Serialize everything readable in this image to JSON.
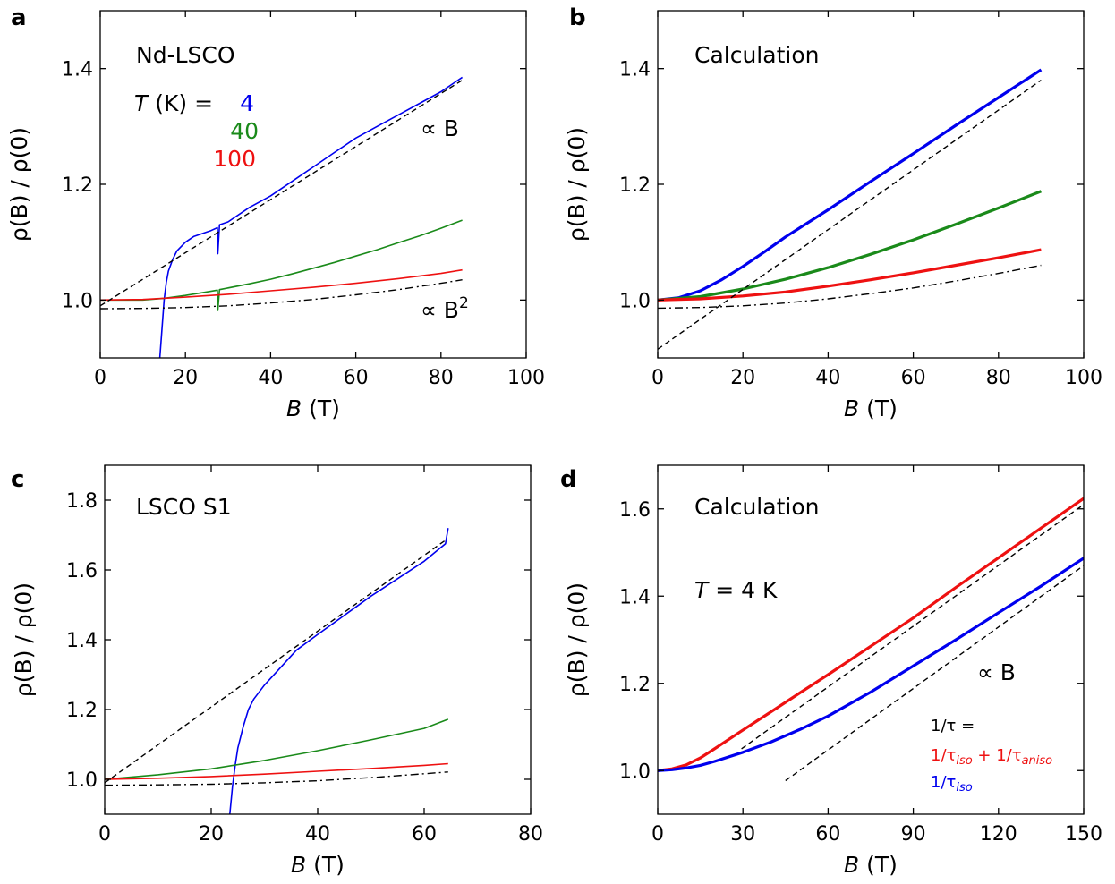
{
  "chart_data": [
    {
      "panel": "a",
      "type": "line",
      "annotation": "Nd-LSCO",
      "temperature_legend": {
        "prefix_symbol": "T",
        "prefix_rest": " (K)  =",
        "entries": [
          {
            "label": "4",
            "color": "#0000ee"
          },
          {
            "label": "40",
            "color": "#1a8a1a"
          },
          {
            "label": "100",
            "color": "#ee1111"
          }
        ]
      },
      "guide_labels": [
        {
          "text": "∝ B",
          "sup": ""
        },
        {
          "text": "∝ B",
          "sup": "2"
        }
      ],
      "xlabel": {
        "sym": "B",
        "rest": " (T)"
      },
      "ylabel": "ρ(B) / ρ(0)",
      "xlim": [
        0,
        100
      ],
      "ylim": [
        0.9,
        1.5
      ],
      "xticks": [
        0,
        20,
        40,
        60,
        80,
        100
      ],
      "yticks": [
        1.0,
        1.2,
        1.4
      ],
      "series": [
        {
          "color": "#0000ee",
          "width": 1.6,
          "x": [
            14,
            14.5,
            15,
            15.5,
            16,
            17,
            18,
            20,
            22,
            24,
            26,
            27.5,
            27.6,
            28,
            30,
            35,
            40,
            45,
            50,
            55,
            60,
            65,
            70,
            75,
            80,
            85
          ],
          "y": [
            0.9,
            0.95,
            1.0,
            1.03,
            1.05,
            1.07,
            1.085,
            1.1,
            1.11,
            1.115,
            1.12,
            1.125,
            1.08,
            1.13,
            1.135,
            1.16,
            1.18,
            1.205,
            1.23,
            1.255,
            1.28,
            1.3,
            1.32,
            1.34,
            1.36,
            1.385
          ]
        },
        {
          "color": "#1a8a1a",
          "width": 1.6,
          "x": [
            0,
            5,
            10,
            15,
            20,
            25,
            27.5,
            27.6,
            28,
            35,
            40,
            45,
            50,
            55,
            60,
            65,
            70,
            75,
            80,
            85
          ],
          "y": [
            1.0,
            1.0,
            1.0,
            1.003,
            1.008,
            1.014,
            1.017,
            0.982,
            1.018,
            1.028,
            1.036,
            1.045,
            1.055,
            1.065,
            1.076,
            1.087,
            1.099,
            1.111,
            1.124,
            1.138
          ]
        },
        {
          "color": "#ee1111",
          "width": 1.6,
          "x": [
            0,
            10,
            20,
            30,
            40,
            50,
            60,
            70,
            80,
            85
          ],
          "y": [
            1.0,
            1.001,
            1.005,
            1.01,
            1.016,
            1.022,
            1.029,
            1.037,
            1.046,
            1.052
          ]
        },
        {
          "color": "#000000",
          "width": 1.4,
          "dash": "6,4",
          "x": [
            0,
            85
          ],
          "y": [
            0.99,
            1.38
          ]
        },
        {
          "color": "#000000",
          "width": 1.4,
          "dash": "9,4,2,4",
          "x": [
            0,
            10,
            20,
            30,
            40,
            50,
            60,
            70,
            80,
            85
          ],
          "y": [
            0.985,
            0.9855,
            0.987,
            0.99,
            0.995,
            1.001,
            1.009,
            1.018,
            1.029,
            1.035
          ]
        }
      ]
    },
    {
      "panel": "b",
      "type": "line",
      "annotation": "Calculation",
      "xlabel": {
        "sym": "B",
        "rest": " (T)"
      },
      "ylabel": "ρ(B) / ρ(0)",
      "xlim": [
        0,
        100
      ],
      "ylim": [
        0.9,
        1.5
      ],
      "xticks": [
        0,
        20,
        40,
        60,
        80,
        100
      ],
      "yticks": [
        1.0,
        1.2,
        1.4
      ],
      "series": [
        {
          "color": "#0000ee",
          "width": 3.2,
          "x": [
            0,
            5,
            10,
            15,
            20,
            25,
            30,
            40,
            50,
            60,
            70,
            80,
            90
          ],
          "y": [
            1.0,
            1.004,
            1.016,
            1.035,
            1.058,
            1.083,
            1.109,
            1.156,
            1.205,
            1.253,
            1.302,
            1.35,
            1.398
          ]
        },
        {
          "color": "#1a8a1a",
          "width": 3.2,
          "x": [
            0,
            10,
            20,
            30,
            40,
            50,
            60,
            70,
            80,
            90
          ],
          "y": [
            1.0,
            1.006,
            1.019,
            1.036,
            1.056,
            1.079,
            1.104,
            1.131,
            1.159,
            1.188
          ]
        },
        {
          "color": "#ee1111",
          "width": 3.2,
          "x": [
            0,
            10,
            20,
            30,
            40,
            50,
            60,
            70,
            80,
            90
          ],
          "y": [
            1.0,
            1.002,
            1.007,
            1.014,
            1.024,
            1.035,
            1.047,
            1.06,
            1.073,
            1.087
          ]
        },
        {
          "color": "#000000",
          "width": 1.4,
          "dash": "6,4",
          "x": [
            0,
            90
          ],
          "y": [
            0.915,
            1.38
          ]
        },
        {
          "color": "#000000",
          "width": 1.4,
          "dash": "9,4,2,4",
          "x": [
            0,
            10,
            20,
            30,
            40,
            50,
            60,
            70,
            80,
            90
          ],
          "y": [
            0.986,
            0.987,
            0.99,
            0.995,
            1.002,
            1.011,
            1.021,
            1.033,
            1.046,
            1.06
          ]
        }
      ]
    },
    {
      "panel": "c",
      "type": "line",
      "annotation": "LSCO S1",
      "xlabel": {
        "sym": "B",
        "rest": " (T)"
      },
      "ylabel": "ρ(B) / ρ(0)",
      "xlim": [
        0,
        80
      ],
      "ylim": [
        0.9,
        1.9
      ],
      "xticks": [
        0,
        20,
        40,
        60,
        80
      ],
      "yticks": [
        1.0,
        1.2,
        1.4,
        1.6,
        1.8
      ],
      "series": [
        {
          "color": "#0000ee",
          "width": 1.6,
          "x": [
            23.5,
            24,
            24.5,
            25,
            26,
            27,
            28,
            30,
            33,
            36,
            40,
            45,
            50,
            55,
            60,
            64,
            64.5
          ],
          "y": [
            0.9,
            0.98,
            1.04,
            1.09,
            1.15,
            1.2,
            1.23,
            1.27,
            1.32,
            1.37,
            1.415,
            1.47,
            1.525,
            1.575,
            1.625,
            1.675,
            1.72
          ]
        },
        {
          "color": "#1a8a1a",
          "width": 1.6,
          "x": [
            0,
            10,
            20,
            30,
            40,
            50,
            60,
            64.5
          ],
          "y": [
            1.0,
            1.013,
            1.03,
            1.054,
            1.082,
            1.113,
            1.146,
            1.172
          ]
        },
        {
          "color": "#ee1111",
          "width": 1.6,
          "x": [
            0,
            10,
            20,
            30,
            40,
            50,
            60,
            64.5
          ],
          "y": [
            1.0,
            1.003,
            1.008,
            1.015,
            1.023,
            1.031,
            1.04,
            1.045
          ]
        },
        {
          "color": "#000000",
          "width": 1.4,
          "dash": "6,4",
          "x": [
            0,
            64
          ],
          "y": [
            0.99,
            1.685
          ]
        },
        {
          "color": "#000000",
          "width": 1.4,
          "dash": "9,4,2,4",
          "x": [
            0,
            10,
            20,
            30,
            40,
            50,
            60,
            64.5
          ],
          "y": [
            0.983,
            0.984,
            0.986,
            0.99,
            0.996,
            1.005,
            1.016,
            1.021
          ]
        }
      ]
    },
    {
      "panel": "d",
      "type": "line",
      "annotation": "Calculation",
      "temperature": {
        "symbol": "T",
        "rest": " =  4 K"
      },
      "guide_label": "∝ B",
      "legend_title": "1/τ =",
      "legend": [
        {
          "text": "1/τ",
          "sub": "iso",
          "text2": " + 1/τ",
          "sub2": "aniso",
          "color": "#ee1111"
        },
        {
          "text": "1/τ",
          "sub": "iso",
          "text2": "",
          "sub2": "",
          "color": "#0000ee"
        }
      ],
      "xlabel": {
        "sym": "B",
        "rest": " (T)"
      },
      "ylabel": "ρ(B) / ρ(0)",
      "xlim": [
        0,
        150
      ],
      "ylim": [
        0.9,
        1.7
      ],
      "xticks": [
        0,
        30,
        60,
        90,
        120,
        150
      ],
      "yticks": [
        1.0,
        1.2,
        1.4,
        1.6
      ],
      "series": [
        {
          "color": "#ee1111",
          "width": 3.2,
          "x": [
            0,
            5,
            10,
            15,
            20,
            30,
            40,
            50,
            60,
            75,
            90,
            105,
            120,
            135,
            150
          ],
          "y": [
            1.0,
            1.004,
            1.013,
            1.029,
            1.05,
            1.093,
            1.135,
            1.178,
            1.22,
            1.285,
            1.35,
            1.42,
            1.488,
            1.556,
            1.624
          ]
        },
        {
          "color": "#0000ee",
          "width": 3.2,
          "x": [
            0,
            5,
            10,
            15,
            20,
            30,
            40,
            50,
            60,
            75,
            90,
            105,
            120,
            135,
            150
          ],
          "y": [
            1.0,
            1.002,
            1.006,
            1.012,
            1.021,
            1.042,
            1.066,
            1.094,
            1.125,
            1.18,
            1.24,
            1.3,
            1.362,
            1.423,
            1.487
          ]
        },
        {
          "color": "#000000",
          "width": 1.4,
          "dash": "6,4",
          "x": [
            29.5,
            150
          ],
          "y": [
            1.05,
            1.61
          ]
        },
        {
          "color": "#000000",
          "width": 1.4,
          "dash": "6,4",
          "x": [
            45,
            150
          ],
          "y": [
            0.977,
            1.47
          ]
        }
      ]
    }
  ]
}
